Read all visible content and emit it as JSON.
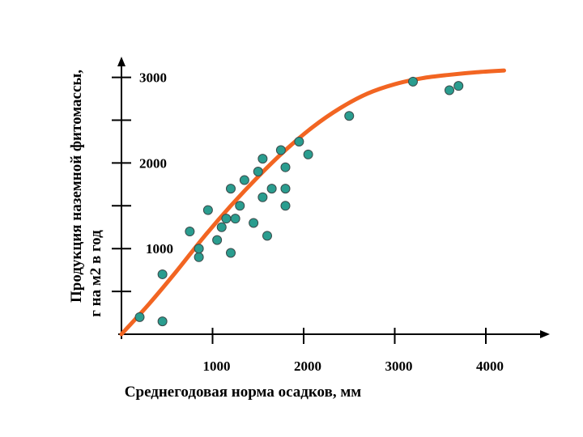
{
  "chart_data": {
    "type": "scatter",
    "xlabel": "Среднегодовая норма осадков, мм",
    "ylabel_lines": [
      "Продукция наземной фитомассы,",
      "г на м2 в год"
    ],
    "x_ticks": [
      1000,
      2000,
      3000,
      4000
    ],
    "x_tick_labels": [
      "1000",
      "2000",
      "3000",
      "4000"
    ],
    "y_ticks": [
      500,
      1000,
      1500,
      2000,
      2500,
      3000
    ],
    "y_tick_labels": {
      "1000": "1000",
      "2000": "2000",
      "3000": "3000"
    },
    "xlim": [
      0,
      4700
    ],
    "ylim": [
      0,
      3300
    ],
    "grid": false,
    "points": [
      {
        "x": 200,
        "y": 200
      },
      {
        "x": 450,
        "y": 150
      },
      {
        "x": 450,
        "y": 700
      },
      {
        "x": 750,
        "y": 1200
      },
      {
        "x": 850,
        "y": 900
      },
      {
        "x": 850,
        "y": 1000
      },
      {
        "x": 950,
        "y": 1450
      },
      {
        "x": 1050,
        "y": 1100
      },
      {
        "x": 1100,
        "y": 1250
      },
      {
        "x": 1150,
        "y": 1350
      },
      {
        "x": 1200,
        "y": 950
      },
      {
        "x": 1200,
        "y": 1700
      },
      {
        "x": 1250,
        "y": 1350
      },
      {
        "x": 1300,
        "y": 1500
      },
      {
        "x": 1350,
        "y": 1800
      },
      {
        "x": 1450,
        "y": 1300
      },
      {
        "x": 1500,
        "y": 1900
      },
      {
        "x": 1550,
        "y": 1600
      },
      {
        "x": 1550,
        "y": 2050
      },
      {
        "x": 1600,
        "y": 1150
      },
      {
        "x": 1650,
        "y": 1700
      },
      {
        "x": 1750,
        "y": 2150
      },
      {
        "x": 1800,
        "y": 1500
      },
      {
        "x": 1800,
        "y": 1700
      },
      {
        "x": 1800,
        "y": 1950
      },
      {
        "x": 1950,
        "y": 2250
      },
      {
        "x": 2050,
        "y": 2100
      },
      {
        "x": 2500,
        "y": 2550
      },
      {
        "x": 3200,
        "y": 2950
      },
      {
        "x": 3600,
        "y": 2850
      },
      {
        "x": 3700,
        "y": 2900
      }
    ],
    "trend": [
      {
        "x": 0,
        "y": 0
      },
      {
        "x": 300,
        "y": 350
      },
      {
        "x": 600,
        "y": 730
      },
      {
        "x": 900,
        "y": 1130
      },
      {
        "x": 1200,
        "y": 1500
      },
      {
        "x": 1500,
        "y": 1840
      },
      {
        "x": 1800,
        "y": 2150
      },
      {
        "x": 2100,
        "y": 2420
      },
      {
        "x": 2400,
        "y": 2640
      },
      {
        "x": 2700,
        "y": 2810
      },
      {
        "x": 3000,
        "y": 2920
      },
      {
        "x": 3300,
        "y": 2990
      },
      {
        "x": 3600,
        "y": 3030
      },
      {
        "x": 3900,
        "y": 3060
      },
      {
        "x": 4200,
        "y": 3080
      }
    ],
    "colors": {
      "points_fill": "#2a9d8f",
      "points_stroke": "#3a4a4a",
      "trend": "#f26522",
      "axis": "#000000"
    }
  }
}
